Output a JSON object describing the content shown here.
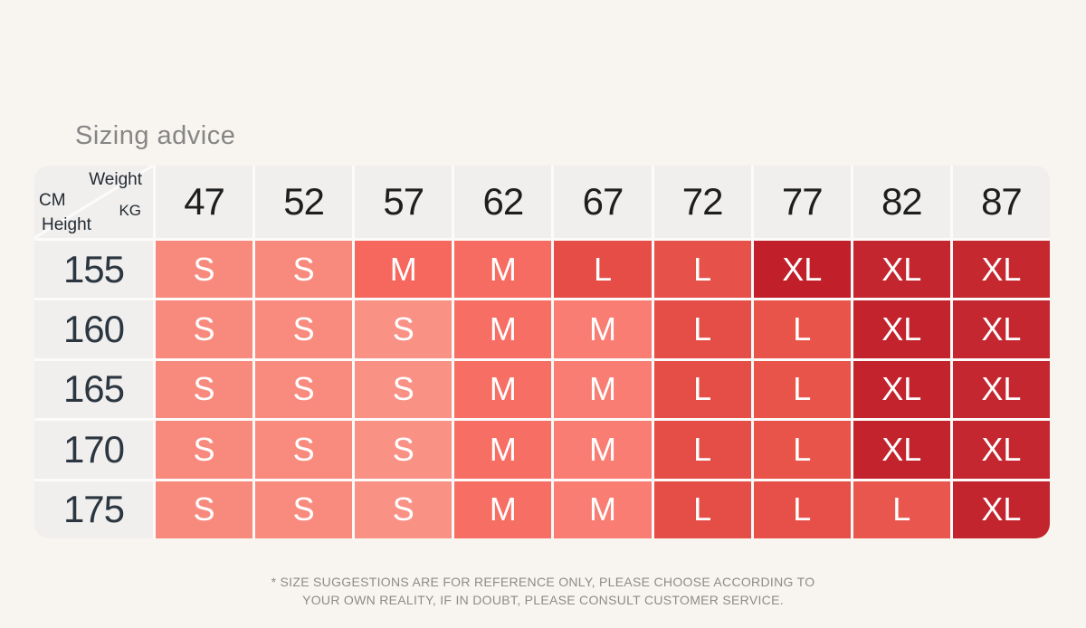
{
  "title": "Sizing advice",
  "colors": {
    "page_bg": "#f8f5f0",
    "grid_line": "#fcfbfa",
    "header_cell_bg": "#f0efee",
    "header_text": "#1e1e1e",
    "height_text": "#2b3640",
    "cell_text": "#ffffff",
    "title_text": "#868686",
    "footer_text": "#8d8b89",
    "size_legend": {
      "S": "#f88a7d",
      "M": "#f76b61",
      "L": "#e65049",
      "XL": "#c3242e"
    }
  },
  "table": {
    "corner": {
      "weight": "Weight",
      "kg": "KG",
      "cm": "CM",
      "height": "Height"
    },
    "weight_headers": [
      "47",
      "52",
      "57",
      "62",
      "67",
      "72",
      "77",
      "82",
      "87"
    ],
    "rows": [
      {
        "height": "155",
        "cells": [
          {
            "size": "S",
            "color": "#f88a7d"
          },
          {
            "size": "S",
            "color": "#f88a7d"
          },
          {
            "size": "M",
            "color": "#f6675d"
          },
          {
            "size": "M",
            "color": "#f76c62"
          },
          {
            "size": "L",
            "color": "#e54d46"
          },
          {
            "size": "L",
            "color": "#e65149"
          },
          {
            "size": "XL",
            "color": "#c1202a"
          },
          {
            "size": "XL",
            "color": "#c4262f"
          },
          {
            "size": "XL",
            "color": "#c5292f"
          }
        ]
      },
      {
        "height": "160",
        "cells": [
          {
            "size": "S",
            "color": "#f88a7d"
          },
          {
            "size": "S",
            "color": "#f88b7e"
          },
          {
            "size": "S",
            "color": "#f99185"
          },
          {
            "size": "M",
            "color": "#f76e64"
          },
          {
            "size": "M",
            "color": "#f97d72"
          },
          {
            "size": "L",
            "color": "#e54e47"
          },
          {
            "size": "L",
            "color": "#e85449"
          },
          {
            "size": "XL",
            "color": "#c2232c"
          },
          {
            "size": "XL",
            "color": "#c42730"
          }
        ]
      },
      {
        "height": "165",
        "cells": [
          {
            "size": "S",
            "color": "#f88a7d"
          },
          {
            "size": "S",
            "color": "#f88b7e"
          },
          {
            "size": "S",
            "color": "#f99185"
          },
          {
            "size": "M",
            "color": "#f76e64"
          },
          {
            "size": "M",
            "color": "#f97d72"
          },
          {
            "size": "L",
            "color": "#e54e47"
          },
          {
            "size": "L",
            "color": "#e85449"
          },
          {
            "size": "XL",
            "color": "#c2232c"
          },
          {
            "size": "XL",
            "color": "#c42730"
          }
        ]
      },
      {
        "height": "170",
        "cells": [
          {
            "size": "S",
            "color": "#f88a7d"
          },
          {
            "size": "S",
            "color": "#f88b7e"
          },
          {
            "size": "S",
            "color": "#f99185"
          },
          {
            "size": "M",
            "color": "#f76e64"
          },
          {
            "size": "M",
            "color": "#f97d72"
          },
          {
            "size": "L",
            "color": "#e54e47"
          },
          {
            "size": "L",
            "color": "#e85449"
          },
          {
            "size": "XL",
            "color": "#c2232c"
          },
          {
            "size": "XL",
            "color": "#c42730"
          }
        ]
      },
      {
        "height": "175",
        "cells": [
          {
            "size": "S",
            "color": "#f88a7d"
          },
          {
            "size": "S",
            "color": "#f88b7e"
          },
          {
            "size": "S",
            "color": "#f99185"
          },
          {
            "size": "M",
            "color": "#f76e64"
          },
          {
            "size": "M",
            "color": "#f97d72"
          },
          {
            "size": "L",
            "color": "#e54e47"
          },
          {
            "size": "L",
            "color": "#e65049"
          },
          {
            "size": "L",
            "color": "#e8564e"
          },
          {
            "size": "XL",
            "color": "#c3252e"
          }
        ]
      }
    ]
  },
  "footer": {
    "line1": "* SIZE SUGGESTIONS ARE FOR REFERENCE ONLY, PLEASE CHOOSE ACCORDING TO",
    "line2": "YOUR OWN REALITY, IF IN DOUBT, PLEASE CONSULT CUSTOMER SERVICE."
  },
  "chart_data": {
    "type": "heatmap",
    "title": "Sizing advice",
    "xlabel": "Weight (KG)",
    "ylabel": "Height (CM)",
    "x": [
      47,
      52,
      57,
      62,
      67,
      72,
      77,
      82,
      87
    ],
    "y": [
      155,
      160,
      165,
      170,
      175
    ],
    "values": [
      [
        "S",
        "S",
        "M",
        "M",
        "L",
        "L",
        "XL",
        "XL",
        "XL"
      ],
      [
        "S",
        "S",
        "S",
        "M",
        "M",
        "L",
        "L",
        "XL",
        "XL"
      ],
      [
        "S",
        "S",
        "S",
        "M",
        "M",
        "L",
        "L",
        "XL",
        "XL"
      ],
      [
        "S",
        "S",
        "S",
        "M",
        "M",
        "L",
        "L",
        "XL",
        "XL"
      ],
      [
        "S",
        "S",
        "S",
        "M",
        "M",
        "L",
        "L",
        "L",
        "XL"
      ]
    ],
    "color_scale": {
      "S": "#f88a7d",
      "M": "#f76b61",
      "L": "#e65049",
      "XL": "#c3242e"
    },
    "legend_position": "none",
    "grid": false,
    "note": "* SIZE SUGGESTIONS ARE FOR REFERENCE ONLY, PLEASE CHOOSE ACCORDING TO YOUR OWN REALITY, IF IN DOUBT, PLEASE CONSULT CUSTOMER SERVICE."
  }
}
